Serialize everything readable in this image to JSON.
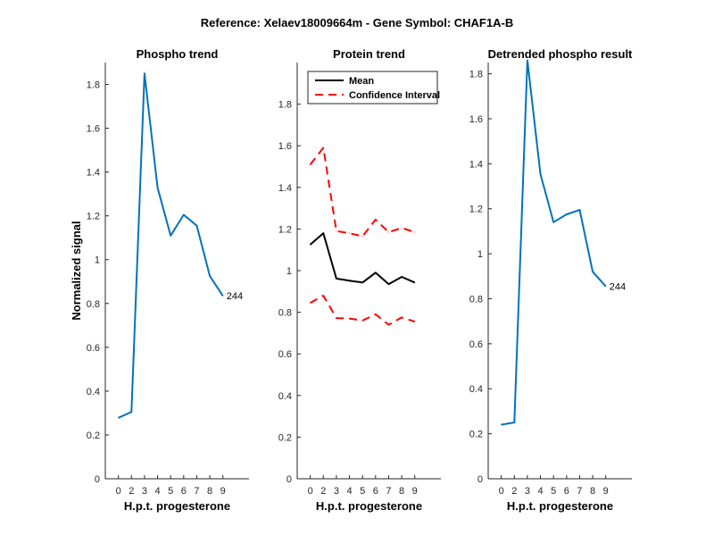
{
  "suptitle": "Reference:  Xelaev18009664m - Gene Symbol:  CHAF1A-B",
  "colors": {
    "blue": "#0072BD",
    "black": "#000000",
    "red": "#FF0000"
  },
  "chart_data": [
    {
      "type": "line",
      "title": "Phospho trend",
      "xlabel": "H.p.t. progesterone",
      "ylabel": "Normalized signal",
      "categories": [
        "0",
        "2",
        "3",
        "4",
        "5",
        "6",
        "7",
        "8",
        "9"
      ],
      "xlim": [
        -1,
        10
      ],
      "ylim": [
        0,
        1.9
      ],
      "yticks": [
        0,
        0.2,
        0.4,
        0.6,
        0.8,
        1,
        1.2,
        1.4,
        1.6,
        1.8
      ],
      "ytick_labels": [
        "0",
        "0.2",
        "0.4",
        "0.6",
        "0.8",
        "1",
        "1.2",
        "1.4",
        "1.6",
        "1.8"
      ],
      "series": [
        {
          "values": [
            0.278,
            0.305,
            1.85,
            1.33,
            1.11,
            1.205,
            1.155,
            0.925,
            0.835
          ],
          "color": "#0072BD",
          "dash": "solid"
        }
      ],
      "end_label": "244"
    },
    {
      "type": "line",
      "title": "Protein trend",
      "xlabel": "H.p.t. progesterone",
      "ylabel": "",
      "categories": [
        "0",
        "2",
        "3",
        "4",
        "5",
        "6",
        "7",
        "8",
        "9"
      ],
      "xlim": [
        -1,
        10
      ],
      "ylim": [
        0,
        2.0
      ],
      "yticks": [
        0,
        0.2,
        0.4,
        0.6,
        0.8,
        1,
        1.2,
        1.4,
        1.6,
        1.8
      ],
      "ytick_labels": [
        "0",
        "0.2",
        "0.4",
        "0.6",
        "0.8",
        "1",
        "1.2",
        "1.4",
        "1.6",
        "1.8"
      ],
      "legend": {
        "placement": "top-left",
        "entries": [
          "Mean",
          "Confidence Interval"
        ]
      },
      "series": [
        {
          "name": "Mean",
          "values": [
            1.125,
            1.18,
            0.962,
            0.952,
            0.943,
            0.99,
            0.935,
            0.97,
            0.943
          ],
          "color": "#000000",
          "dash": "solid"
        },
        {
          "name": "Confidence Interval",
          "values": [
            1.51,
            1.59,
            1.19,
            1.18,
            1.165,
            1.245,
            1.185,
            1.205,
            1.185
          ],
          "color": "#FF0000",
          "dash": "dashed"
        },
        {
          "values": [
            0.845,
            0.88,
            0.772,
            0.77,
            0.76,
            0.79,
            0.74,
            0.775,
            0.755
          ],
          "color": "#FF0000",
          "dash": "dashed"
        }
      ]
    },
    {
      "type": "line",
      "title": "Detrended phospho result",
      "xlabel": "H.p.t. progesterone",
      "ylabel": "",
      "categories": [
        "0",
        "2",
        "3",
        "4",
        "5",
        "6",
        "7",
        "8",
        "9"
      ],
      "xlim": [
        -1,
        10
      ],
      "ylim": [
        0,
        1.85
      ],
      "yticks": [
        0,
        0.2,
        0.4,
        0.6,
        0.8,
        1,
        1.2,
        1.4,
        1.6,
        1.8
      ],
      "ytick_labels": [
        "0",
        "0.2",
        "0.4",
        "0.6",
        "0.8",
        "1",
        "1.2",
        "1.4",
        "1.6",
        "1.8"
      ],
      "series": [
        {
          "values": [
            0.24,
            0.25,
            1.86,
            1.355,
            1.14,
            1.175,
            1.195,
            0.92,
            0.855
          ],
          "color": "#0072BD",
          "dash": "solid"
        }
      ],
      "end_label": "244"
    }
  ]
}
